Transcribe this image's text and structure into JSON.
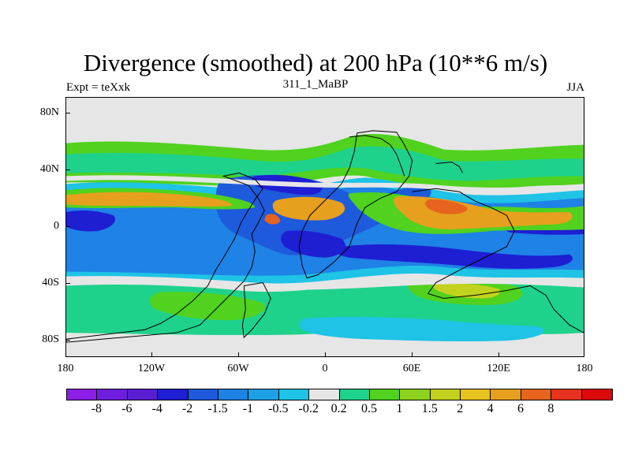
{
  "title": "Divergence (smoothed) at 200 hPa (10**6 m/s)",
  "left_label": "Expt = teXxk",
  "center_label": "311_1_MaBP",
  "right_label": "JJA",
  "y_axis_labels": [
    "80N",
    "40N",
    "0",
    "40S",
    "80S"
  ],
  "x_axis_labels": [
    "180",
    "120W",
    "60W",
    "0",
    "60E",
    "120E",
    "180"
  ],
  "colorbar": {
    "colors": [
      "#8c1ee6",
      "#6e1edc",
      "#5a1ed2",
      "#1e1ed2",
      "#1e5adc",
      "#1e82e6",
      "#1ea0e6",
      "#1ec3e6",
      "#e6e6e6",
      "#1ed28c",
      "#50d21e",
      "#8cd21e",
      "#c3d21e",
      "#e6c31e",
      "#e6a01e",
      "#e6641e",
      "#e6321e",
      "#dc0a0a"
    ],
    "labels": [
      "-8",
      "-6",
      "-4",
      "-2",
      "-1.5",
      "-1",
      "-0.5",
      "-0.2",
      "0.2",
      "0.5",
      "1",
      "1.5",
      "2",
      "4",
      "6",
      "8"
    ]
  },
  "fill_colors": {
    "background": "#e6e6e6",
    "strong_neg": "#1e1ed2",
    "neg": "#1e5adc",
    "mid_neg": "#1e82e6",
    "light_neg": "#1ec3e6",
    "light_pos": "#1ed28c",
    "pos": "#50d21e",
    "mid_pos": "#c3d21e",
    "strong_pos": "#e6a01e",
    "max_pos": "#e6641e",
    "coast": "#000000"
  }
}
